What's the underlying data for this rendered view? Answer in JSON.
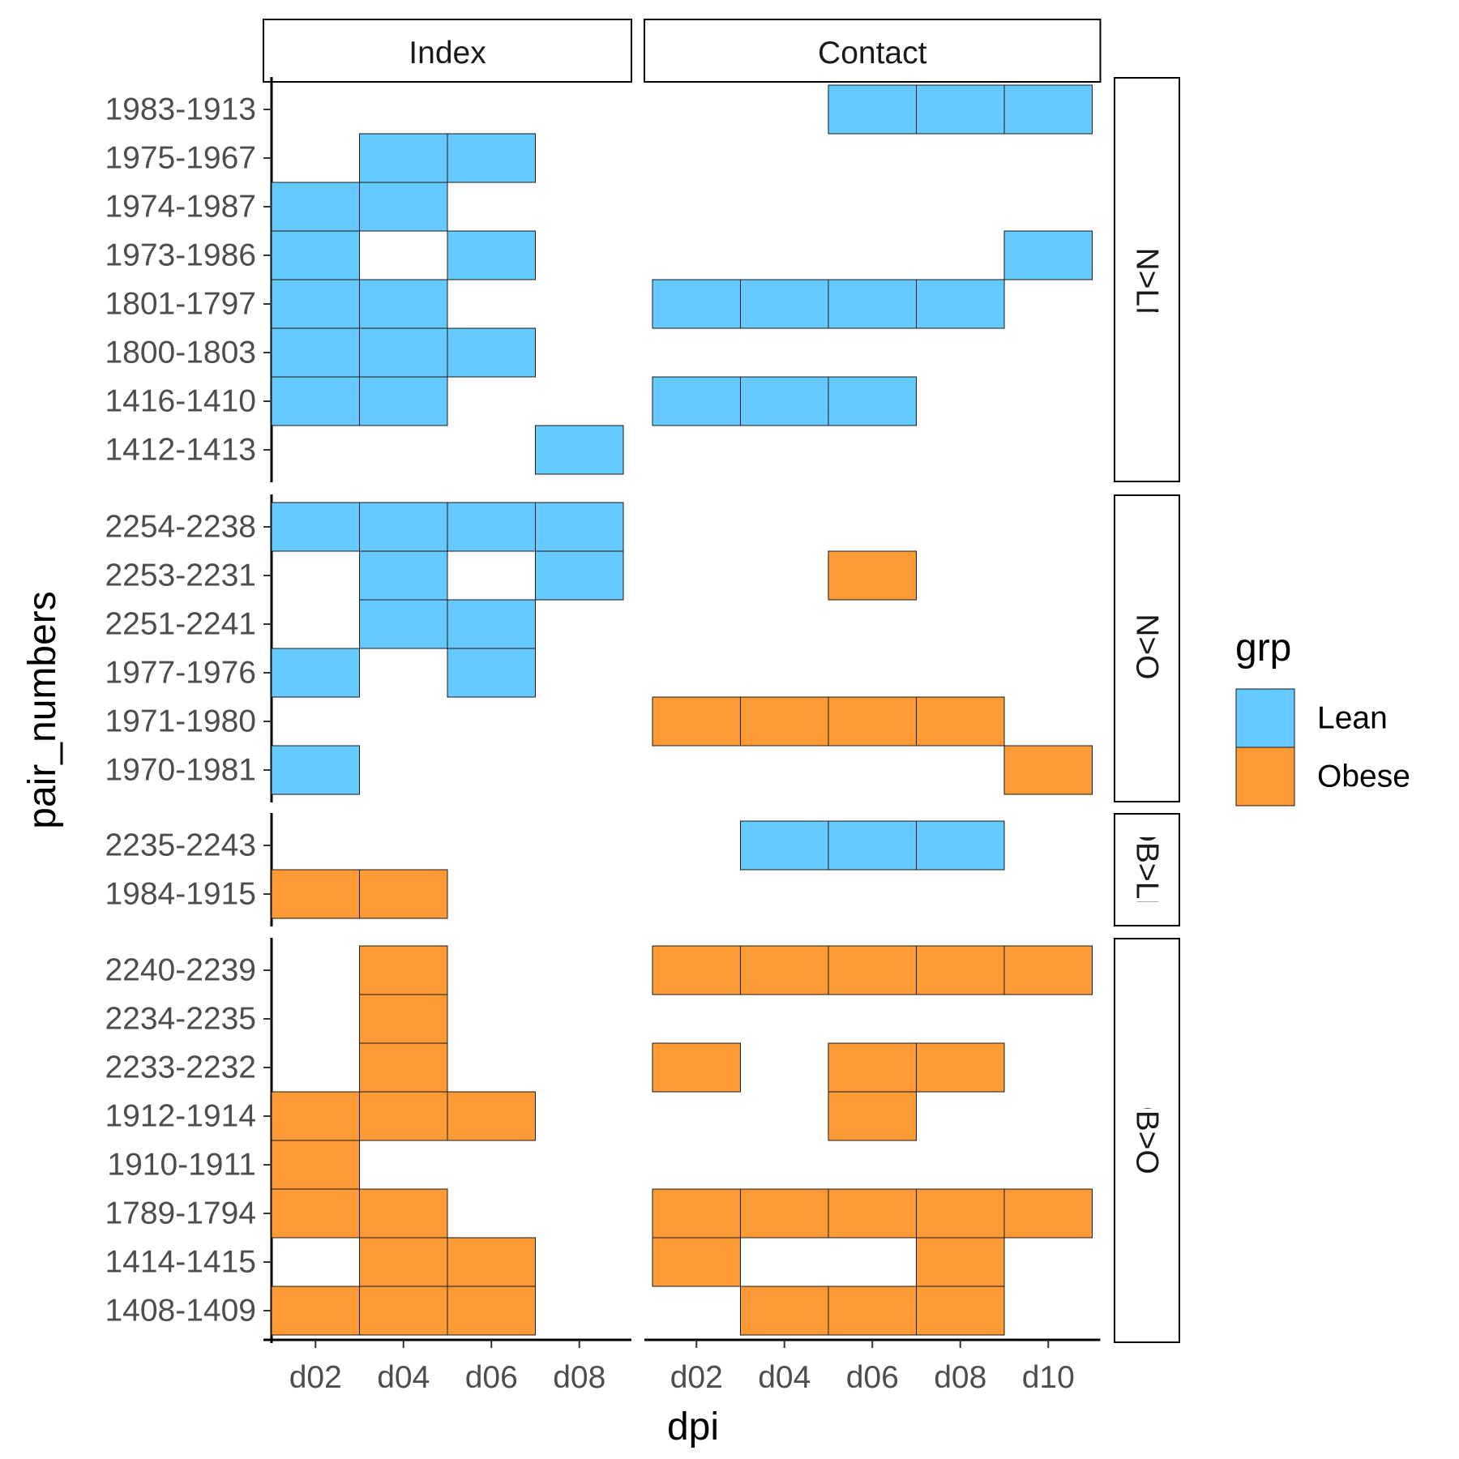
{
  "chart_data": {
    "type": "heatmap",
    "xlabel": "dpi",
    "ylabel": "pair_numbers",
    "x_levels": [
      "d02",
      "d04",
      "d06",
      "d08",
      "d10"
    ],
    "x_ticks": [
      "d02",
      "d04",
      "d06",
      "d08",
      "d10"
    ],
    "columns": [
      {
        "name": "Index",
        "x_count": 4,
        "x_ticks": [
          "d02",
          "d04",
          "d06",
          "d08"
        ]
      },
      {
        "name": "Contact",
        "x_count": 5,
        "x_ticks": [
          "d02",
          "d04",
          "d06",
          "d08",
          "d10"
        ]
      }
    ],
    "legend": {
      "title": "grp",
      "position": "right",
      "items": [
        {
          "label": "Lean",
          "color": "#66c9ff"
        },
        {
          "label": "Obese",
          "color": "#fc9a35"
        }
      ]
    },
    "rows": [
      {
        "name": "LN>LN",
        "pairs": [
          "1983-1913",
          "1975-1967",
          "1974-1987",
          "1973-1986",
          "1801-1797",
          "1800-1803",
          "1416-1410",
          "1412-1413"
        ],
        "cells": {
          "Index": {
            "1975-1967": {
              "d04": "Lean",
              "d06": "Lean"
            },
            "1974-1987": {
              "d02": "Lean",
              "d04": "Lean"
            },
            "1973-1986": {
              "d02": "Lean",
              "d06": "Lean"
            },
            "1801-1797": {
              "d02": "Lean",
              "d04": "Lean"
            },
            "1800-1803": {
              "d02": "Lean",
              "d04": "Lean",
              "d06": "Lean"
            },
            "1416-1410": {
              "d02": "Lean",
              "d04": "Lean"
            },
            "1412-1413": {
              "d08": "Lean"
            }
          },
          "Contact": {
            "1983-1913": {
              "d06": "Lean",
              "d08": "Lean",
              "d10": "Lean"
            },
            "1973-1986": {
              "d10": "Lean"
            },
            "1801-1797": {
              "d02": "Lean",
              "d04": "Lean",
              "d06": "Lean",
              "d08": "Lean"
            },
            "1416-1410": {
              "d02": "Lean",
              "d04": "Lean",
              "d06": "Lean"
            }
          }
        }
      },
      {
        "name": "LN>OB",
        "pairs": [
          "2254-2238",
          "2253-2231",
          "2251-2241",
          "1977-1976",
          "1971-1980",
          "1970-1981"
        ],
        "cells": {
          "Index": {
            "2254-2238": {
              "d02": "Lean",
              "d04": "Lean",
              "d06": "Lean",
              "d08": "Lean"
            },
            "2253-2231": {
              "d04": "Lean",
              "d08": "Lean"
            },
            "2251-2241": {
              "d04": "Lean",
              "d06": "Lean"
            },
            "1977-1976": {
              "d02": "Lean",
              "d06": "Lean"
            },
            "1970-1981": {
              "d02": "Lean"
            }
          },
          "Contact": {
            "2253-2231": {
              "d06": "Obese"
            },
            "1971-1980": {
              "d02": "Obese",
              "d04": "Obese",
              "d06": "Obese",
              "d08": "Obese"
            },
            "1970-1981": {
              "d10": "Obese"
            }
          }
        }
      },
      {
        "name": "OB>LN",
        "pairs": [
          "2235-2243",
          "1984-1915"
        ],
        "cells": {
          "Index": {
            "1984-1915": {
              "d02": "Obese",
              "d04": "Obese"
            }
          },
          "Contact": {
            "2235-2243": {
              "d04": "Lean",
              "d06": "Lean",
              "d08": "Lean"
            }
          }
        }
      },
      {
        "name": "OB>OB",
        "pairs": [
          "2240-2239",
          "2234-2235",
          "2233-2232",
          "1912-1914",
          "1910-1911",
          "1789-1794",
          "1414-1415",
          "1408-1409"
        ],
        "cells": {
          "Index": {
            "2240-2239": {
              "d04": "Obese"
            },
            "2234-2235": {
              "d04": "Obese"
            },
            "2233-2232": {
              "d04": "Obese"
            },
            "1912-1914": {
              "d02": "Obese",
              "d04": "Obese",
              "d06": "Obese"
            },
            "1910-1911": {
              "d02": "Obese"
            },
            "1789-1794": {
              "d02": "Obese",
              "d04": "Obese"
            },
            "1414-1415": {
              "d04": "Obese",
              "d06": "Obese"
            },
            "1408-1409": {
              "d02": "Obese",
              "d04": "Obese",
              "d06": "Obese"
            }
          },
          "Contact": {
            "2240-2239": {
              "d02": "Obese",
              "d04": "Obese",
              "d06": "Obese",
              "d08": "Obese",
              "d10": "Obese"
            },
            "2233-2232": {
              "d02": "Obese",
              "d06": "Obese",
              "d08": "Obese"
            },
            "1912-1914": {
              "d06": "Obese"
            },
            "1789-1794": {
              "d02": "Obese",
              "d04": "Obese",
              "d06": "Obese",
              "d08": "Obese",
              "d10": "Obese"
            },
            "1414-1415": {
              "d02": "Obese",
              "d08": "Obese"
            },
            "1408-1409": {
              "d04": "Obese",
              "d06": "Obese",
              "d08": "Obese"
            }
          }
        }
      }
    ]
  }
}
